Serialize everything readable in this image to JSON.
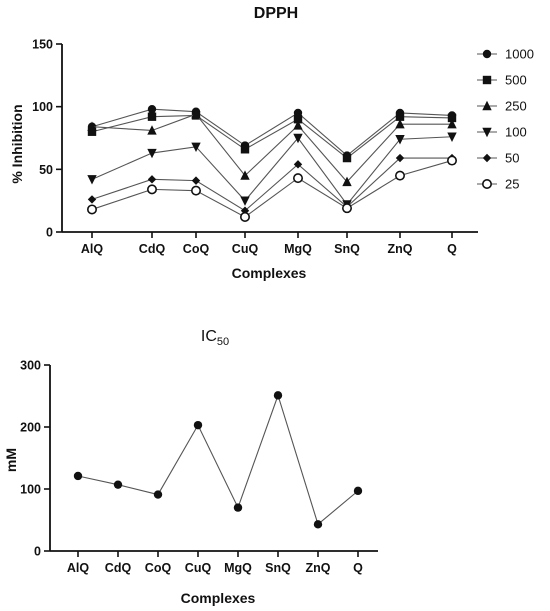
{
  "chart_data": [
    {
      "type": "line",
      "title": "DPPH",
      "xlabel": "Complexes",
      "ylabel": "% Inhibition",
      "ylim": [
        0,
        150
      ],
      "yticks": [
        "0",
        "50",
        "100",
        "150"
      ],
      "categories": [
        "AlQ",
        "CdQ",
        "CoQ",
        "CuQ",
        "MgQ",
        "SnQ",
        "ZnQ",
        "Q"
      ],
      "legend_position": "right",
      "series": [
        {
          "name": "1000",
          "marker": "circle",
          "values": [
            84,
            98,
            96,
            69,
            95,
            61,
            95,
            93
          ]
        },
        {
          "name": "500",
          "marker": "square",
          "values": [
            80,
            92,
            93,
            66,
            90,
            59,
            92,
            91
          ]
        },
        {
          "name": "250",
          "marker": "triangle",
          "values": [
            84,
            81,
            94,
            45,
            85,
            40,
            86,
            86
          ]
        },
        {
          "name": "100",
          "marker": "tri-down",
          "values": [
            42,
            63,
            68,
            25,
            75,
            22,
            74,
            76
          ]
        },
        {
          "name": "50",
          "marker": "diamond",
          "values": [
            26,
            42,
            41,
            17,
            54,
            20,
            59,
            59
          ]
        },
        {
          "name": "25",
          "marker": "open-circle",
          "values": [
            18,
            34,
            33,
            12,
            43,
            19,
            45,
            57
          ]
        }
      ]
    },
    {
      "type": "line",
      "title": "IC",
      "title_subscript": "50",
      "xlabel": "Complexes",
      "ylabel": "mM",
      "ylim": [
        0,
        300
      ],
      "yticks": [
        "0",
        "100",
        "200",
        "300"
      ],
      "categories": [
        "AlQ",
        "CdQ",
        "CoQ",
        "CuQ",
        "MgQ",
        "SnQ",
        "ZnQ",
        "Q"
      ],
      "series": [
        {
          "marker": "circle",
          "values": [
            121,
            107,
            91,
            203,
            70,
            251,
            43,
            97
          ]
        }
      ]
    }
  ]
}
